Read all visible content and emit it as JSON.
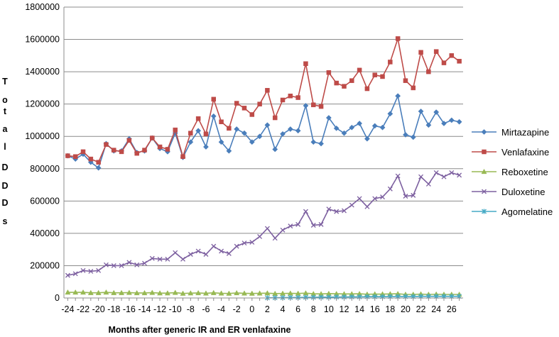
{
  "chart_data": {
    "type": "line",
    "xlabel": "Months after generic IR and ER venlafaxine",
    "ylabel": "Total DDDs",
    "ylim": [
      0,
      1800000
    ],
    "xlim": [
      -24,
      27
    ],
    "yticks": [
      0,
      200000,
      400000,
      600000,
      800000,
      1000000,
      1200000,
      1400000,
      1600000,
      1800000
    ],
    "ytick_labels": [
      "0",
      "200000",
      "400000",
      "600000",
      "800000",
      "1000000",
      "1200000",
      "1400000",
      "1600000",
      "1800000"
    ],
    "xtick_labels": [
      "-24",
      "-22",
      "-20",
      "-18",
      "-16",
      "-14",
      "-12",
      "-10",
      "-8",
      "-6",
      "-4",
      "-2",
      "0",
      "2",
      "4",
      "6",
      "8",
      "10",
      "12",
      "14",
      "16",
      "18",
      "20",
      "22",
      "24",
      "26"
    ],
    "grid": "horizontal",
    "legend_position": "right",
    "x": [
      -24,
      -23,
      -22,
      -21,
      -20,
      -19,
      -18,
      -17,
      -16,
      -15,
      -14,
      -13,
      -12,
      -11,
      -10,
      -9,
      -8,
      -7,
      -6,
      -5,
      -4,
      -3,
      -2,
      -1,
      0,
      1,
      2,
      3,
      4,
      5,
      6,
      7,
      8,
      9,
      10,
      11,
      12,
      13,
      14,
      15,
      16,
      17,
      18,
      19,
      20,
      21,
      22,
      23,
      24,
      25,
      26,
      27
    ],
    "series": [
      {
        "name": "Mirtazapine",
        "color": "#4a7ebb",
        "marker": "diamond",
        "values": [
          880000,
          860000,
          890000,
          840000,
          805000,
          955000,
          910000,
          910000,
          985000,
          900000,
          910000,
          990000,
          925000,
          905000,
          1020000,
          870000,
          965000,
          1035000,
          935000,
          1125000,
          965000,
          910000,
          1045000,
          1020000,
          965000,
          1000000,
          1070000,
          920000,
          1015000,
          1045000,
          1035000,
          1190000,
          965000,
          955000,
          1115000,
          1050000,
          1020000,
          1055000,
          1080000,
          985000,
          1065000,
          1055000,
          1140000,
          1250000,
          1010000,
          995000,
          1155000,
          1070000,
          1150000,
          1080000,
          1100000,
          1090000
        ]
      },
      {
        "name": "Venlafaxine",
        "color": "#be4b48",
        "marker": "square",
        "values": [
          880000,
          875000,
          905000,
          860000,
          840000,
          950000,
          915000,
          905000,
          975000,
          895000,
          915000,
          990000,
          935000,
          920000,
          1040000,
          875000,
          1020000,
          1110000,
          1015000,
          1230000,
          1090000,
          1050000,
          1205000,
          1175000,
          1135000,
          1200000,
          1285000,
          1115000,
          1225000,
          1250000,
          1240000,
          1450000,
          1195000,
          1185000,
          1395000,
          1330000,
          1310000,
          1345000,
          1410000,
          1295000,
          1380000,
          1370000,
          1460000,
          1605000,
          1345000,
          1300000,
          1520000,
          1400000,
          1525000,
          1455000,
          1500000,
          1465000
        ]
      },
      {
        "name": "Reboxetine",
        "color": "#98b954",
        "marker": "triangle",
        "values": [
          35000,
          35000,
          35000,
          32000,
          32000,
          35000,
          32000,
          32000,
          33000,
          31000,
          31000,
          33000,
          30000,
          30000,
          33000,
          28000,
          30000,
          31000,
          29000,
          32000,
          29000,
          28000,
          31000,
          29000,
          28000,
          29000,
          30000,
          27000,
          28000,
          29000,
          28000,
          30000,
          26000,
          25000,
          27000,
          26000,
          25000,
          25000,
          26000,
          23000,
          24000,
          24000,
          25000,
          26000,
          22000,
          22000,
          24000,
          22000,
          23000,
          22000,
          22000,
          22000
        ]
      },
      {
        "name": "Duloxetine",
        "color": "#7d60a0",
        "marker": "x",
        "values": [
          140000,
          150000,
          170000,
          165000,
          170000,
          205000,
          200000,
          200000,
          220000,
          205000,
          215000,
          245000,
          240000,
          240000,
          280000,
          240000,
          270000,
          290000,
          270000,
          320000,
          290000,
          275000,
          320000,
          340000,
          345000,
          380000,
          430000,
          370000,
          420000,
          445000,
          455000,
          535000,
          450000,
          455000,
          550000,
          535000,
          540000,
          575000,
          615000,
          565000,
          615000,
          625000,
          675000,
          755000,
          630000,
          635000,
          750000,
          705000,
          775000,
          750000,
          775000,
          760000
        ]
      },
      {
        "name": "Agomelatine",
        "color": "#46aac5",
        "marker": "star",
        "values": [
          null,
          null,
          null,
          null,
          null,
          null,
          null,
          null,
          null,
          null,
          null,
          null,
          null,
          null,
          null,
          null,
          null,
          null,
          null,
          null,
          null,
          null,
          null,
          null,
          null,
          null,
          1000,
          1500,
          2000,
          3000,
          3000,
          4000,
          4000,
          5000,
          5000,
          6000,
          6000,
          7000,
          7000,
          8000,
          8000,
          8000,
          9000,
          9000,
          9000,
          9000,
          10000,
          10000,
          10000,
          10000,
          10000,
          10000
        ]
      }
    ]
  }
}
